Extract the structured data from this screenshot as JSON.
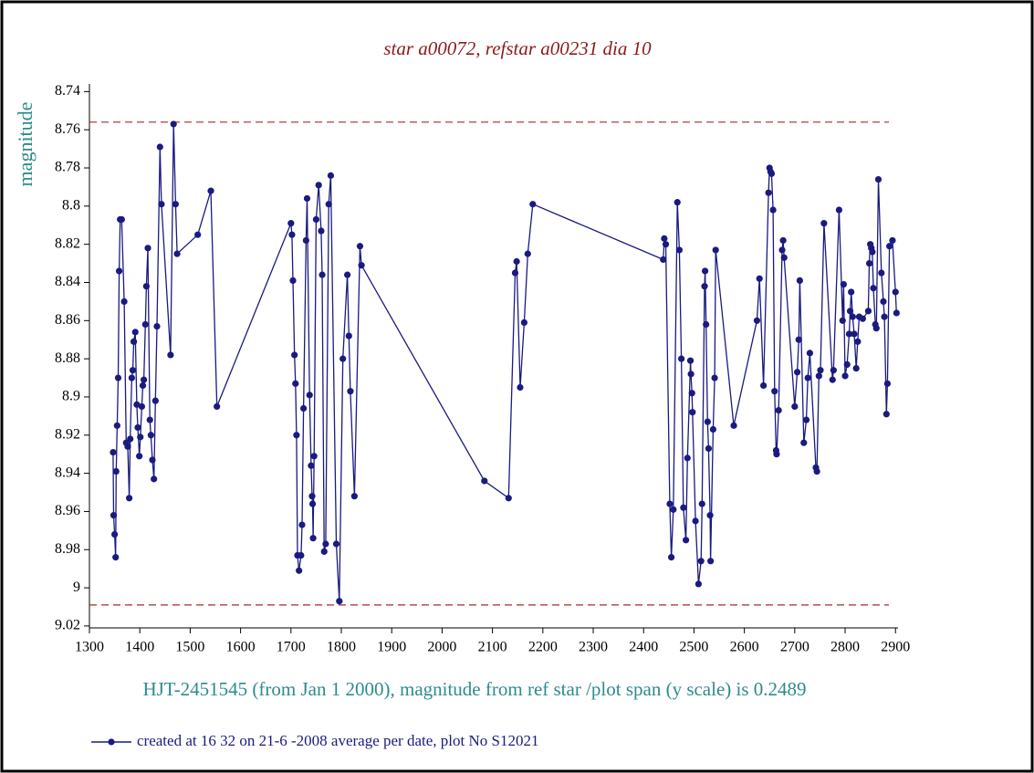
{
  "chart_data": {
    "type": "line",
    "title": "star a00072, refstar a00231  dia  10",
    "y_label": "magnitude",
    "x_label": "HJT-2451545 (from Jan 1 2000), magnitude from ref star /plot span (y scale) is 0.2489",
    "xlim": [
      1300,
      2905
    ],
    "xticks": [
      1300,
      1400,
      1500,
      1600,
      1700,
      1800,
      1900,
      2000,
      2100,
      2200,
      2300,
      2400,
      2500,
      2600,
      2700,
      2800,
      2900
    ],
    "ylim": [
      9.021,
      8.736
    ],
    "yticks": [
      8.74,
      8.76,
      8.78,
      8.8,
      8.82,
      8.84,
      8.86,
      8.88,
      8.9,
      8.92,
      8.94,
      8.96,
      8.98,
      9,
      9.02
    ],
    "reference_lines": [
      8.756,
      9.009
    ],
    "reference_color": "#a52a2a",
    "series": [
      {
        "name": "created at 16 32 on 21-6 -2008 average per date, plot No S12021",
        "color": "#1a1a80",
        "x": [
          1347,
          1348,
          1350,
          1352,
          1353,
          1355,
          1357,
          1359,
          1361,
          1364,
          1369,
          1373,
          1376,
          1379,
          1381,
          1384,
          1386,
          1388,
          1391,
          1394,
          1396,
          1399,
          1401,
          1404,
          1406,
          1408,
          1411,
          1413,
          1416,
          1420,
          1422,
          1425,
          1428,
          1431,
          1434,
          1440,
          1443,
          1461,
          1467,
          1471,
          1474,
          1515,
          1541,
          1553,
          1700,
          1702,
          1704,
          1707,
          1709,
          1711,
          1713,
          1716,
          1720,
          1722,
          1725,
          1730,
          1732,
          1737,
          1740,
          1742,
          1743,
          1744,
          1746,
          1750,
          1755,
          1760,
          1762,
          1766,
          1769,
          1775,
          1779,
          1790,
          1796,
          1803,
          1812,
          1815,
          1818,
          1826,
          1837,
          1840,
          2084,
          2132,
          2145,
          2148,
          2155,
          2163,
          2170,
          2180,
          2439,
          2441,
          2444,
          2452,
          2455,
          2459,
          2467,
          2471,
          2475,
          2479,
          2484,
          2487,
          2493,
          2494,
          2496,
          2497,
          2503,
          2509,
          2514,
          2516,
          2521,
          2522,
          2524,
          2527,
          2529,
          2532,
          2533,
          2538,
          2541,
          2543,
          2579,
          2625,
          2630,
          2638,
          2648,
          2650,
          2652,
          2654,
          2657,
          2660,
          2663,
          2664,
          2668,
          2675,
          2677,
          2679,
          2700,
          2705,
          2708,
          2710,
          2718,
          2723,
          2726,
          2730,
          2742,
          2744,
          2748,
          2751,
          2758,
          2775,
          2777,
          2788,
          2795,
          2797,
          2800,
          2804,
          2808,
          2810,
          2812,
          2815,
          2818,
          2822,
          2825,
          2828,
          2835,
          2846,
          2848,
          2850,
          2852,
          2854,
          2856,
          2860,
          2862,
          2866,
          2872,
          2876,
          2878,
          2882,
          2884,
          2888,
          2894,
          2900,
          2902
        ],
        "values": [
          8.929,
          8.962,
          8.972,
          8.984,
          8.939,
          8.915,
          8.89,
          8.834,
          8.807,
          8.807,
          8.85,
          8.924,
          8.926,
          8.953,
          8.922,
          8.89,
          8.886,
          8.871,
          8.866,
          8.904,
          8.916,
          8.931,
          8.921,
          8.905,
          8.894,
          8.891,
          8.862,
          8.842,
          8.822,
          8.912,
          8.92,
          8.933,
          8.943,
          8.902,
          8.863,
          8.769,
          8.799,
          8.878,
          8.757,
          8.799,
          8.825,
          8.815,
          8.792,
          8.905,
          8.809,
          8.815,
          8.839,
          8.878,
          8.893,
          8.92,
          8.983,
          8.991,
          8.983,
          8.967,
          8.906,
          8.818,
          8.796,
          8.899,
          8.936,
          8.952,
          8.956,
          8.974,
          8.931,
          8.807,
          8.789,
          8.813,
          8.836,
          8.981,
          8.977,
          8.799,
          8.784,
          8.977,
          9.007,
          8.88,
          8.836,
          8.868,
          8.897,
          8.952,
          8.821,
          8.831,
          8.944,
          8.953,
          8.835,
          8.829,
          8.895,
          8.861,
          8.825,
          8.799,
          8.828,
          8.817,
          8.82,
          8.956,
          8.984,
          8.959,
          8.798,
          8.823,
          8.88,
          8.958,
          8.975,
          8.932,
          8.881,
          8.888,
          8.898,
          8.908,
          8.965,
          8.998,
          8.986,
          8.956,
          8.842,
          8.834,
          8.862,
          8.913,
          8.927,
          8.962,
          8.986,
          8.917,
          8.89,
          8.823,
          8.915,
          8.86,
          8.838,
          8.894,
          8.793,
          8.78,
          8.782,
          8.783,
          8.802,
          8.897,
          8.928,
          8.93,
          8.907,
          8.823,
          8.818,
          8.827,
          8.905,
          8.887,
          8.87,
          8.839,
          8.924,
          8.912,
          8.89,
          8.877,
          8.937,
          8.939,
          8.889,
          8.886,
          8.809,
          8.891,
          8.886,
          8.802,
          8.86,
          8.841,
          8.889,
          8.883,
          8.867,
          8.855,
          8.845,
          8.858,
          8.867,
          8.885,
          8.871,
          8.858,
          8.859,
          8.855,
          8.83,
          8.82,
          8.822,
          8.824,
          8.843,
          8.862,
          8.864,
          8.786,
          8.835,
          8.85,
          8.858,
          8.909,
          8.893,
          8.821,
          8.818,
          8.845,
          8.856
        ]
      }
    ]
  }
}
